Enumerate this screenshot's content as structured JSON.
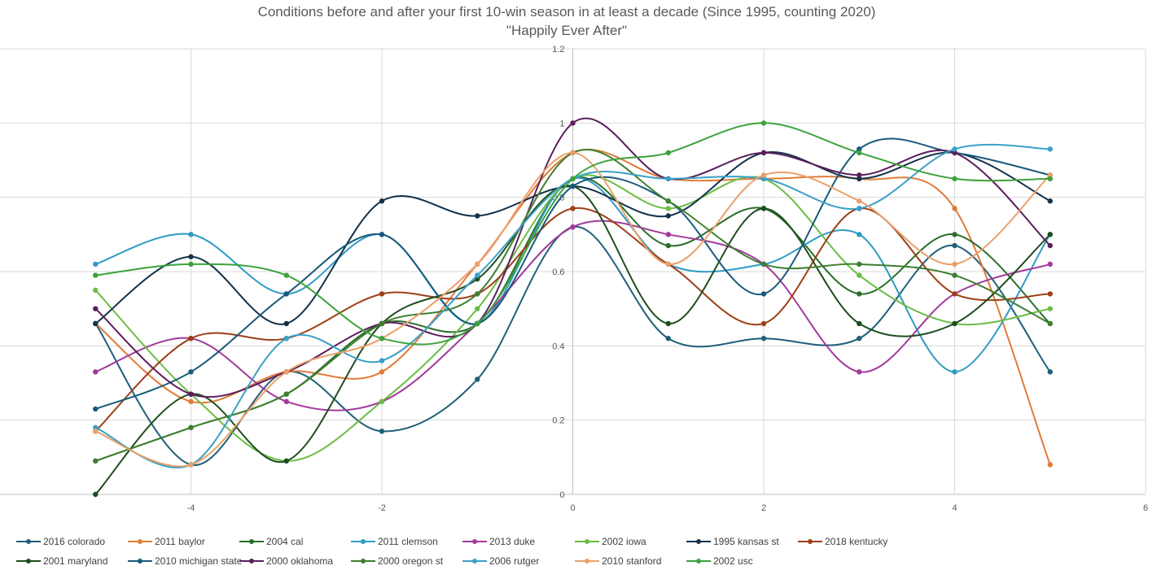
{
  "chart_data": {
    "type": "line",
    "title": "Conditions before and after your first 10-win season in at least a decade (Since 1995, counting 2020)",
    "subtitle": "\"Happily Ever After\"",
    "xlabel": "",
    "ylabel": "",
    "xlim": [
      -6,
      6
    ],
    "ylim": [
      0,
      1.2
    ],
    "x_ticks": [
      "-4",
      "-2",
      "0",
      "2",
      "4",
      "6"
    ],
    "y_ticks": [
      "0",
      "0.2",
      "0.4",
      "0.6",
      "0.8",
      "1",
      "1.2"
    ],
    "grid": true,
    "smooth": true,
    "legend_position": "bottom",
    "x": [
      -5,
      -4,
      -3,
      -2,
      -1,
      0,
      1,
      2,
      3,
      4,
      5
    ],
    "series": [
      {
        "name": "2016 colorado",
        "color": "#1f5f7a",
        "values": [
          0.46,
          0.08,
          0.33,
          0.17,
          0.31,
          0.72,
          0.42,
          0.42,
          0.42,
          0.67,
          0.33
        ]
      },
      {
        "name": "2011 baylor",
        "color": "#e07b39",
        "values": [
          0.46,
          0.25,
          0.33,
          0.33,
          0.62,
          0.92,
          0.85,
          0.85,
          0.85,
          0.77,
          0.08
        ]
      },
      {
        "name": "2004 cal",
        "color": "#2a6e2a",
        "values": [
          0.09,
          0.18,
          0.27,
          0.46,
          0.46,
          0.85,
          0.67,
          0.77,
          0.54,
          0.7,
          0.46
        ]
      },
      {
        "name": "2011 clemson",
        "color": "#2e9bc6",
        "values": [
          0.62,
          0.7,
          0.54,
          0.7,
          0.46,
          0.85,
          0.62,
          0.62,
          0.7,
          0.33,
          0.7
        ]
      },
      {
        "name": "2013 duke",
        "color": "#a23a9b",
        "values": [
          0.33,
          0.42,
          0.25,
          0.25,
          0.46,
          0.72,
          0.7,
          0.62,
          0.33,
          0.54,
          0.62
        ]
      },
      {
        "name": "2002 iowa",
        "color": "#6bbd45",
        "values": [
          0.55,
          0.27,
          0.09,
          0.25,
          0.5,
          0.85,
          0.77,
          0.85,
          0.59,
          0.46,
          0.5
        ]
      },
      {
        "name": "1995 kansas st",
        "color": "#14324a",
        "values": [
          0.46,
          0.64,
          0.46,
          0.79,
          0.75,
          0.83,
          0.75,
          0.92,
          0.85,
          0.92,
          0.79
        ]
      },
      {
        "name": "2018 kentucky",
        "color": "#9c4016",
        "values": [
          0.17,
          0.42,
          0.42,
          0.54,
          0.54,
          0.77,
          0.62,
          0.46,
          0.77,
          0.54,
          0.54
        ]
      },
      {
        "name": "2001 maryland",
        "color": "#1e4d1e",
        "values": [
          0.0,
          0.27,
          0.09,
          0.46,
          0.58,
          0.83,
          0.46,
          0.77,
          0.46,
          0.46,
          0.7
        ]
      },
      {
        "name": "2010 michigan state",
        "color": "#185a7a",
        "values": [
          0.23,
          0.33,
          0.54,
          0.7,
          0.46,
          0.83,
          0.79,
          0.54,
          0.93,
          0.92,
          0.86
        ]
      },
      {
        "name": "2000 oklahoma",
        "color": "#5c1f5c",
        "values": [
          0.5,
          0.27,
          0.33,
          0.46,
          0.46,
          1.0,
          0.85,
          0.92,
          0.86,
          0.92,
          0.67
        ]
      },
      {
        "name": "2000 oregon st",
        "color": "#3e7f2f",
        "values": [
          0.09,
          0.18,
          0.27,
          0.46,
          0.54,
          0.92,
          0.79,
          0.62,
          0.62,
          0.59,
          0.46
        ]
      },
      {
        "name": "2006 rutger",
        "color": "#3aa0c8",
        "values": [
          0.18,
          0.08,
          0.42,
          0.36,
          0.59,
          0.85,
          0.85,
          0.85,
          0.77,
          0.93,
          0.93
        ]
      },
      {
        "name": "2010 stanford",
        "color": "#eaa06a",
        "values": [
          0.17,
          0.08,
          0.33,
          0.42,
          0.62,
          0.92,
          0.62,
          0.86,
          0.79,
          0.62,
          0.86
        ]
      },
      {
        "name": "2002 usc",
        "color": "#3ca33c",
        "values": [
          0.59,
          0.62,
          0.59,
          0.42,
          0.46,
          0.85,
          0.92,
          1.0,
          0.92,
          0.85,
          0.85
        ]
      }
    ]
  }
}
